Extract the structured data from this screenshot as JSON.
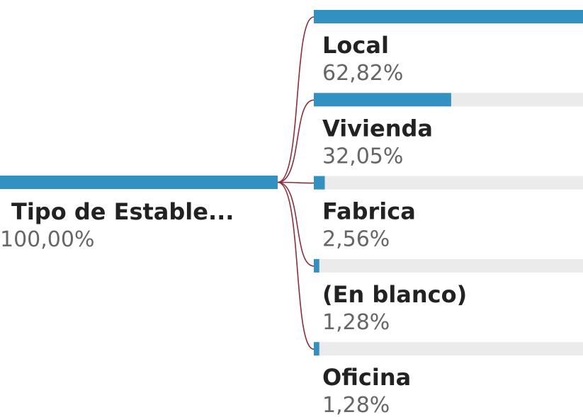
{
  "chart_data": {
    "type": "decomposition_tree",
    "root": {
      "label": "Tipo de Estable...",
      "value": 100,
      "value_label": "100,00%"
    },
    "categories": [
      "Local",
      "Vivienda",
      "Fabrica",
      "(En blanco)",
      "Oficina"
    ],
    "values": [
      62.82,
      32.05,
      2.56,
      1.28,
      1.28
    ],
    "value_labels": [
      "62,82%",
      "32,05%",
      "2,56%",
      "1,28%",
      "1,28%"
    ],
    "color": "#3391c1",
    "track_color": "#ebebeb",
    "link_color": "#8b2e3a"
  }
}
